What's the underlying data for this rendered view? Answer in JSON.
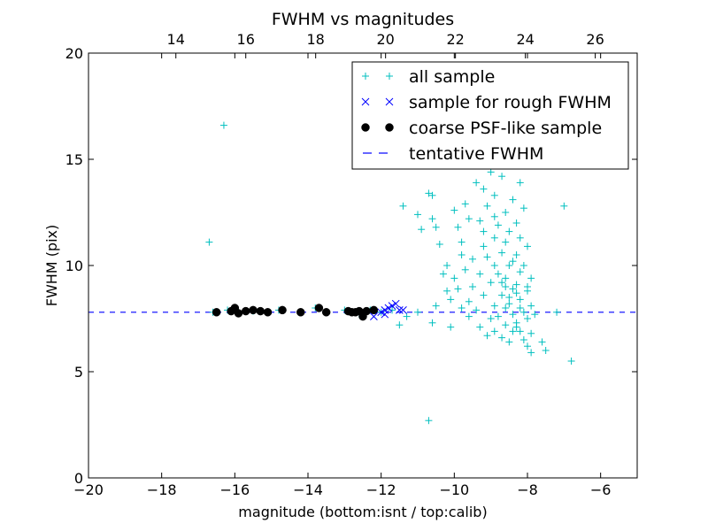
{
  "chart_data": {
    "type": "scatter",
    "title": "FWHM vs magnitudes",
    "xlabel": "magnitude (bottom:isnt / top:calib)",
    "ylabel": "FWHM (pix)",
    "xlim": [
      -20,
      -5
    ],
    "ylim": [
      0,
      20
    ],
    "x_ticks": [
      "−20",
      "−18",
      "−16",
      "−14",
      "−12",
      "−10",
      "−8",
      "−6"
    ],
    "y_ticks": [
      "0",
      "5",
      "10",
      "15",
      "20"
    ],
    "top_xlim": [
      11.5,
      27.2
    ],
    "top_x_ticks": [
      "14",
      "16",
      "18",
      "20",
      "22",
      "24",
      "26"
    ],
    "grid": false,
    "legend_position": "top-right",
    "legend": [
      "all sample",
      "sample for rough FWHM",
      "coarse PSF-like sample",
      "tentative FWHM"
    ],
    "colors": {
      "all_sample": "#00bfbf",
      "rough_sample": "#0000ff",
      "psf_sample": "#000000",
      "tentative_line": "#0000ff"
    },
    "tentative_fwhm": 7.8,
    "series": [
      {
        "name": "all sample",
        "marker": "+",
        "points": [
          [
            -16.7,
            11.1
          ],
          [
            -16.3,
            16.6
          ],
          [
            -16.6,
            7.8
          ],
          [
            -16.2,
            7.9
          ],
          [
            -15.9,
            7.8
          ],
          [
            -15.5,
            7.85
          ],
          [
            -15.1,
            7.8
          ],
          [
            -14.8,
            7.9
          ],
          [
            -14.2,
            7.8
          ],
          [
            -13.8,
            8.0
          ],
          [
            -13.5,
            7.8
          ],
          [
            -13.0,
            7.9
          ],
          [
            -12.6,
            7.7
          ],
          [
            -12.3,
            7.9
          ],
          [
            -12.0,
            7.8
          ],
          [
            -11.7,
            7.9
          ],
          [
            -11.5,
            7.2
          ],
          [
            -11.3,
            7.6
          ],
          [
            -11.0,
            7.8
          ],
          [
            -11.4,
            12.8
          ],
          [
            -11.0,
            12.4
          ],
          [
            -10.9,
            11.7
          ],
          [
            -10.7,
            13.4
          ],
          [
            -10.6,
            13.3
          ],
          [
            -10.6,
            12.2
          ],
          [
            -10.5,
            11.8
          ],
          [
            -10.4,
            11.0
          ],
          [
            -10.3,
            9.6
          ],
          [
            -10.2,
            8.8
          ],
          [
            -10.1,
            8.4
          ],
          [
            -10.5,
            8.1
          ],
          [
            -10.6,
            7.3
          ],
          [
            -10.1,
            7.1
          ],
          [
            -10.7,
            2.7
          ],
          [
            -10.0,
            12.6
          ],
          [
            -9.9,
            11.8
          ],
          [
            -9.8,
            11.1
          ],
          [
            -9.7,
            9.8
          ],
          [
            -9.6,
            12.2
          ],
          [
            -9.5,
            10.3
          ],
          [
            -9.9,
            8.9
          ],
          [
            -9.8,
            8.0
          ],
          [
            -9.6,
            7.6
          ],
          [
            -9.7,
            12.9
          ],
          [
            -10.0,
            9.4
          ],
          [
            -9.4,
            13.9
          ],
          [
            -9.3,
            12.1
          ],
          [
            -9.2,
            11.6
          ],
          [
            -9.1,
            10.4
          ],
          [
            -9.0,
            9.2
          ],
          [
            -9.2,
            8.6
          ],
          [
            -9.4,
            7.9
          ],
          [
            -9.0,
            7.5
          ],
          [
            -9.3,
            7.1
          ],
          [
            -8.9,
            6.9
          ],
          [
            -9.1,
            6.7
          ],
          [
            -9.0,
            14.4
          ],
          [
            -9.2,
            13.6
          ],
          [
            -9.1,
            12.8
          ],
          [
            -8.9,
            11.3
          ],
          [
            -9.3,
            9.6
          ],
          [
            -8.9,
            8.1
          ],
          [
            -8.8,
            15.1
          ],
          [
            -8.7,
            14.2
          ],
          [
            -8.9,
            13.3
          ],
          [
            -8.6,
            12.5
          ],
          [
            -8.8,
            11.9
          ],
          [
            -8.6,
            11.1
          ],
          [
            -8.7,
            10.6
          ],
          [
            -8.5,
            10.0
          ],
          [
            -8.8,
            9.6
          ],
          [
            -8.6,
            9.0
          ],
          [
            -8.7,
            8.6
          ],
          [
            -8.5,
            8.2
          ],
          [
            -8.8,
            7.6
          ],
          [
            -8.6,
            7.2
          ],
          [
            -8.4,
            6.9
          ],
          [
            -8.7,
            6.6
          ],
          [
            -8.3,
            7.3
          ],
          [
            -8.5,
            6.4
          ],
          [
            -8.4,
            15.6
          ],
          [
            -8.3,
            14.7
          ],
          [
            -8.2,
            13.9
          ],
          [
            -8.4,
            13.1
          ],
          [
            -8.1,
            12.7
          ],
          [
            -8.3,
            12.0
          ],
          [
            -8.2,
            11.3
          ],
          [
            -8.0,
            10.9
          ],
          [
            -8.3,
            10.5
          ],
          [
            -8.1,
            10.0
          ],
          [
            -8.2,
            9.7
          ],
          [
            -7.9,
            9.4
          ],
          [
            -8.3,
            9.1
          ],
          [
            -8.0,
            8.8
          ],
          [
            -8.2,
            8.4
          ],
          [
            -7.9,
            8.1
          ],
          [
            -8.1,
            7.8
          ],
          [
            -8.0,
            7.5
          ],
          [
            -8.3,
            7.1
          ],
          [
            -7.9,
            6.8
          ],
          [
            -8.1,
            6.5
          ],
          [
            -8.0,
            6.2
          ],
          [
            -7.9,
            5.9
          ],
          [
            -8.2,
            6.9
          ],
          [
            -8.5,
            11.6
          ],
          [
            -8.4,
            10.2
          ],
          [
            -8.6,
            9.4
          ],
          [
            -8.4,
            8.9
          ],
          [
            -8.5,
            8.5
          ],
          [
            -8.3,
            8.7
          ],
          [
            -8.9,
            10.0
          ],
          [
            -8.7,
            9.2
          ],
          [
            -8.6,
            8.0
          ],
          [
            -8.4,
            7.7
          ],
          [
            -8.2,
            8.0
          ],
          [
            -8.0,
            9.0
          ],
          [
            -7.8,
            7.7
          ],
          [
            -7.6,
            6.4
          ],
          [
            -7.5,
            6.0
          ],
          [
            -7.0,
            12.8
          ],
          [
            -6.8,
            5.5
          ],
          [
            -7.2,
            7.8
          ],
          [
            -9.5,
            9.0
          ],
          [
            -9.6,
            8.3
          ],
          [
            -9.8,
            10.5
          ],
          [
            -10.2,
            10.0
          ],
          [
            -9.2,
            10.9
          ],
          [
            -8.9,
            12.3
          ]
        ]
      },
      {
        "name": "sample for rough FWHM",
        "marker": "x",
        "points": [
          [
            -12.2,
            7.6
          ],
          [
            -12.0,
            7.8
          ],
          [
            -11.9,
            7.7
          ],
          [
            -11.8,
            8.0
          ],
          [
            -11.7,
            8.1
          ],
          [
            -11.6,
            8.2
          ],
          [
            -11.5,
            7.9
          ],
          [
            -11.4,
            7.9
          ],
          [
            -11.9,
            7.9
          ]
        ]
      },
      {
        "name": "coarse PSF-like sample",
        "marker": "o",
        "points": [
          [
            -16.5,
            7.8
          ],
          [
            -16.1,
            7.85
          ],
          [
            -16.0,
            8.0
          ],
          [
            -15.9,
            7.75
          ],
          [
            -15.7,
            7.85
          ],
          [
            -15.5,
            7.9
          ],
          [
            -15.3,
            7.85
          ],
          [
            -15.1,
            7.8
          ],
          [
            -14.7,
            7.9
          ],
          [
            -14.2,
            7.8
          ],
          [
            -13.7,
            8.0
          ],
          [
            -13.5,
            7.8
          ],
          [
            -12.9,
            7.85
          ],
          [
            -12.8,
            7.8
          ],
          [
            -12.7,
            7.8
          ],
          [
            -12.6,
            7.85
          ],
          [
            -12.5,
            7.6
          ],
          [
            -12.4,
            7.85
          ],
          [
            -12.2,
            7.9
          ]
        ]
      }
    ]
  }
}
